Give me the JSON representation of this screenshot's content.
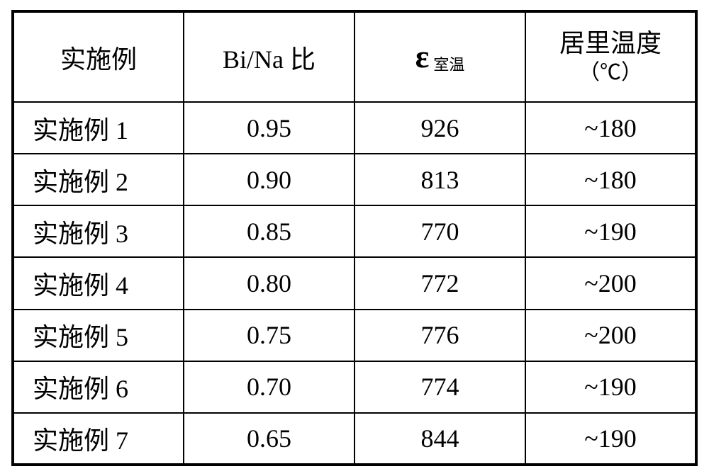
{
  "type": "table",
  "background_color": "#ffffff",
  "border_color": "#000000",
  "text_color": "#000000",
  "font_family": "SimSun",
  "header_fontsize": 36,
  "cell_fontsize": 36,
  "outer_border_width": 4,
  "inner_border_width": 2,
  "columns": {
    "c1": {
      "header": "实施例",
      "align": "center",
      "body_align": "left"
    },
    "c2": {
      "header": "Bi/Na 比",
      "align": "center"
    },
    "c3": {
      "eps_symbol": "ε",
      "eps_subscript": "室温",
      "eps_symbol_fontsize": 46,
      "eps_subscript_fontsize": 22,
      "align": "center"
    },
    "c4": {
      "line1": "居里温度",
      "line2": "（℃）",
      "unit_fontsize": 30,
      "align": "center"
    }
  },
  "rows": [
    {
      "label": "实施例 1",
      "ratio": "0.95",
      "eps": "926",
      "curie": "~180"
    },
    {
      "label": "实施例 2",
      "ratio": "0.90",
      "eps": "813",
      "curie": "~180"
    },
    {
      "label": "实施例 3",
      "ratio": "0.85",
      "eps": "770",
      "curie": "~190"
    },
    {
      "label": "实施例 4",
      "ratio": "0.80",
      "eps": "772",
      "curie": "~200"
    },
    {
      "label": "实施例 5",
      "ratio": "0.75",
      "eps": "776",
      "curie": "~200"
    },
    {
      "label": "实施例 6",
      "ratio": "0.70",
      "eps": "774",
      "curie": "~190"
    },
    {
      "label": "实施例 7",
      "ratio": "0.65",
      "eps": "844",
      "curie": "~190"
    }
  ]
}
